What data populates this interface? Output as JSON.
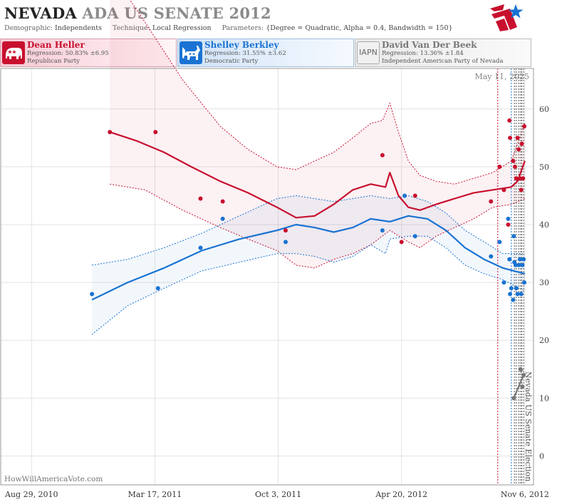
{
  "header": {
    "title_part1": "NEVADA",
    "title_part2": "ADA US SENATE 2012",
    "demographic_label": "Demographic:",
    "demographic_value": "Independents",
    "technique_label": "Technique:",
    "technique_value": "Local Regression",
    "parameters_label": "Parameters:",
    "parameters_value": "{Degree = Quadratic, Alpha = 0.4, Bandwidth = 150}"
  },
  "candidates": [
    {
      "name": "Dean Heller",
      "regression": "Regression: 50.83% ±6.95",
      "party": "Republican Party",
      "icon": "elephant-icon",
      "color": "#c8102e"
    },
    {
      "name": "Shelley Berkley",
      "regression": "Regression: 31.55% ±3.62",
      "party": "Democratic Party",
      "icon": "donkey-icon",
      "color": "#1a73d2"
    },
    {
      "name": "David Van Der Beek",
      "regression": "Regression: 13.36% ±1.84",
      "party": "Independent American Party  of Nevada",
      "icon_text": "IAPN",
      "color": "#777777"
    }
  ],
  "chart_data": {
    "type": "scatter",
    "date_label": "May 11, 2025",
    "watermark": "HowWillAmericaVote.com",
    "election_label": "Nevada US Senate Election",
    "x_tick_labels": [
      "Aug 29, 2010",
      "Mar 17, 2011",
      "Oct 3, 2011",
      "Apr 20, 2012",
      "Nov 6, 2012"
    ],
    "x_ticks": [
      "2010-08-29",
      "2011-03-17",
      "2011-10-03",
      "2012-04-20",
      "2012-11-06"
    ],
    "xlim": [
      "2010-07-10",
      "2012-11-20"
    ],
    "y_ticks": [
      0,
      10,
      20,
      30,
      40,
      50,
      60
    ],
    "ylim": [
      -5,
      67
    ],
    "grid": true,
    "poll_dates": [
      "2012-09-23",
      "2012-10-15",
      "2012-10-20",
      "2012-10-23",
      "2012-10-27",
      "2012-10-30",
      "2012-11-01",
      "2012-11-04"
    ],
    "series": [
      {
        "name": "Dean Heller",
        "color": "#c8102e",
        "points": [
          [
            "2011-01-03",
            56
          ],
          [
            "2011-03-18",
            56
          ],
          [
            "2011-05-30",
            44.5
          ],
          [
            "2011-07-05",
            44
          ],
          [
            "2011-10-15",
            39
          ],
          [
            "2012-03-20",
            52
          ],
          [
            "2012-04-20",
            37
          ],
          [
            "2012-05-12",
            45
          ],
          [
            "2012-09-12",
            44
          ],
          [
            "2012-09-26",
            50
          ],
          [
            "2012-10-03",
            46
          ],
          [
            "2012-10-10",
            40
          ],
          [
            "2012-10-12",
            58
          ],
          [
            "2012-10-13",
            55
          ],
          [
            "2012-10-18",
            51
          ],
          [
            "2012-10-21",
            50
          ],
          [
            "2012-10-23",
            48
          ],
          [
            "2012-10-25",
            55
          ],
          [
            "2012-10-27",
            53
          ],
          [
            "2012-10-29",
            48
          ],
          [
            "2012-10-31",
            46
          ],
          [
            "2012-11-01",
            54
          ],
          [
            "2012-11-03",
            48
          ],
          [
            "2012-11-05",
            57
          ]
        ],
        "trend": [
          [
            "2011-01-03",
            56
          ],
          [
            "2011-02-15",
            54.5
          ],
          [
            "2011-04-01",
            52.5
          ],
          [
            "2011-05-15",
            50
          ],
          [
            "2011-07-01",
            47.5
          ],
          [
            "2011-08-15",
            45.5
          ],
          [
            "2011-10-01",
            43
          ],
          [
            "2011-11-01",
            41.2
          ],
          [
            "2011-12-01",
            41.5
          ],
          [
            "2012-01-01",
            43.5
          ],
          [
            "2012-02-01",
            46
          ],
          [
            "2012-03-01",
            47
          ],
          [
            "2012-03-25",
            46.5
          ],
          [
            "2012-04-01",
            49
          ],
          [
            "2012-04-15",
            45
          ],
          [
            "2012-05-01",
            43
          ],
          [
            "2012-05-20",
            42.5
          ],
          [
            "2012-06-15",
            43.5
          ],
          [
            "2012-07-15",
            44.5
          ],
          [
            "2012-08-15",
            45.5
          ],
          [
            "2012-09-15",
            46
          ],
          [
            "2012-10-15",
            46.5
          ],
          [
            "2012-10-25",
            47.5
          ],
          [
            "2012-11-06",
            51
          ]
        ],
        "upper": [
          [
            "2011-01-03",
            84
          ],
          [
            "2011-03-01",
            75
          ],
          [
            "2011-05-01",
            65
          ],
          [
            "2011-07-01",
            57
          ],
          [
            "2011-08-15",
            53
          ],
          [
            "2011-10-01",
            50
          ],
          [
            "2011-11-01",
            49.5
          ],
          [
            "2011-12-01",
            51
          ],
          [
            "2012-01-01",
            52.5
          ],
          [
            "2012-02-01",
            55
          ],
          [
            "2012-03-01",
            57.5
          ],
          [
            "2012-03-20",
            58
          ],
          [
            "2012-04-01",
            61
          ],
          [
            "2012-04-15",
            56
          ],
          [
            "2012-05-01",
            51
          ],
          [
            "2012-05-20",
            48.5
          ],
          [
            "2012-06-15",
            47.5
          ],
          [
            "2012-07-15",
            47
          ],
          [
            "2012-08-15",
            48
          ],
          [
            "2012-09-15",
            49
          ],
          [
            "2012-10-15",
            51
          ],
          [
            "2012-11-06",
            57.5
          ]
        ],
        "lower": [
          [
            "2011-01-03",
            47
          ],
          [
            "2011-03-01",
            46
          ],
          [
            "2011-05-01",
            42.5
          ],
          [
            "2011-07-01",
            39.5
          ],
          [
            "2011-08-15",
            37.5
          ],
          [
            "2011-10-01",
            35.5
          ],
          [
            "2011-11-01",
            33
          ],
          [
            "2011-12-01",
            32.5
          ],
          [
            "2012-01-01",
            34
          ],
          [
            "2012-02-01",
            35
          ],
          [
            "2012-03-01",
            36.5
          ],
          [
            "2012-04-01",
            39
          ],
          [
            "2012-05-01",
            37
          ],
          [
            "2012-05-20",
            36
          ],
          [
            "2012-06-15",
            38
          ],
          [
            "2012-07-15",
            39.5
          ],
          [
            "2012-08-15",
            41
          ],
          [
            "2012-09-15",
            43
          ],
          [
            "2012-10-15",
            43.5
          ],
          [
            "2012-11-06",
            44.5
          ]
        ]
      },
      {
        "name": "Shelley Berkley",
        "color": "#1a73d2",
        "points": [
          [
            "2010-12-05",
            28
          ],
          [
            "2011-03-22",
            29
          ],
          [
            "2011-05-30",
            36
          ],
          [
            "2011-07-05",
            41
          ],
          [
            "2011-10-15",
            37
          ],
          [
            "2012-03-20",
            39
          ],
          [
            "2012-04-25",
            45
          ],
          [
            "2012-05-12",
            38
          ],
          [
            "2012-09-12",
            34.5
          ],
          [
            "2012-09-26",
            37
          ],
          [
            "2012-10-03",
            30
          ],
          [
            "2012-10-10",
            41
          ],
          [
            "2012-10-12",
            34
          ],
          [
            "2012-10-13",
            28
          ],
          [
            "2012-10-15",
            29
          ],
          [
            "2012-10-18",
            27
          ],
          [
            "2012-10-19",
            38
          ],
          [
            "2012-10-20",
            33.5
          ],
          [
            "2012-10-22",
            33
          ],
          [
            "2012-10-23",
            29
          ],
          [
            "2012-10-25",
            28
          ],
          [
            "2012-10-27",
            33
          ],
          [
            "2012-10-29",
            34
          ],
          [
            "2012-10-31",
            28
          ],
          [
            "2012-11-02",
            33
          ],
          [
            "2012-11-04",
            34
          ],
          [
            "2012-11-05",
            30
          ]
        ],
        "trend": [
          [
            "2010-12-05",
            27
          ],
          [
            "2011-02-01",
            30
          ],
          [
            "2011-04-01",
            32.5
          ],
          [
            "2011-06-01",
            35.5
          ],
          [
            "2011-08-01",
            37.5
          ],
          [
            "2011-10-01",
            39
          ],
          [
            "2011-11-01",
            40
          ],
          [
            "2011-12-01",
            39.5
          ],
          [
            "2012-01-01",
            38.7
          ],
          [
            "2012-02-01",
            39.5
          ],
          [
            "2012-03-01",
            41
          ],
          [
            "2012-04-01",
            40.5
          ],
          [
            "2012-05-01",
            41.5
          ],
          [
            "2012-06-01",
            41
          ],
          [
            "2012-07-01",
            39
          ],
          [
            "2012-08-01",
            36
          ],
          [
            "2012-09-01",
            34
          ],
          [
            "2012-10-01",
            32.5
          ],
          [
            "2012-11-06",
            31.5
          ]
        ],
        "upper": [
          [
            "2010-12-05",
            33
          ],
          [
            "2011-02-01",
            34
          ],
          [
            "2011-04-01",
            36
          ],
          [
            "2011-06-01",
            38.5
          ],
          [
            "2011-08-01",
            41.5
          ],
          [
            "2011-10-01",
            44.5
          ],
          [
            "2011-11-01",
            45
          ],
          [
            "2011-12-01",
            44.5
          ],
          [
            "2012-01-01",
            44
          ],
          [
            "2012-02-01",
            44.5
          ],
          [
            "2012-03-01",
            45
          ],
          [
            "2012-04-01",
            44.5
          ],
          [
            "2012-05-01",
            45
          ],
          [
            "2012-06-01",
            44
          ],
          [
            "2012-07-01",
            42
          ],
          [
            "2012-08-01",
            39
          ],
          [
            "2012-09-01",
            37
          ],
          [
            "2012-10-01",
            35
          ],
          [
            "2012-11-06",
            35
          ]
        ],
        "lower": [
          [
            "2010-12-05",
            21
          ],
          [
            "2011-02-01",
            26
          ],
          [
            "2011-04-01",
            29
          ],
          [
            "2011-06-01",
            32
          ],
          [
            "2011-08-01",
            33.5
          ],
          [
            "2011-10-01",
            35
          ],
          [
            "2011-11-01",
            35
          ],
          [
            "2011-12-01",
            34.5
          ],
          [
            "2012-01-01",
            33.5
          ],
          [
            "2012-02-01",
            34.5
          ],
          [
            "2012-03-01",
            36.5
          ],
          [
            "2012-03-25",
            35
          ],
          [
            "2012-04-01",
            37.5
          ],
          [
            "2012-05-01",
            38
          ],
          [
            "2012-06-01",
            38
          ],
          [
            "2012-07-01",
            36
          ],
          [
            "2012-08-01",
            33
          ],
          [
            "2012-09-01",
            31.5
          ],
          [
            "2012-10-01",
            30.5
          ],
          [
            "2012-11-06",
            28.5
          ]
        ]
      },
      {
        "name": "David Van Der Beek",
        "color": "#777777",
        "points": [
          [
            "2012-10-19",
            10
          ],
          [
            "2012-10-30",
            15
          ],
          [
            "2012-11-04",
            14
          ],
          [
            "2012-11-02",
            12
          ]
        ],
        "trend": [
          [
            "2012-10-19",
            10
          ],
          [
            "2012-11-04",
            14
          ]
        ],
        "upper": [
          [
            "2012-10-27",
            14
          ],
          [
            "2012-11-04",
            15
          ]
        ],
        "lower": [
          [
            "2012-10-27",
            12
          ],
          [
            "2012-11-04",
            12
          ]
        ]
      }
    ]
  }
}
